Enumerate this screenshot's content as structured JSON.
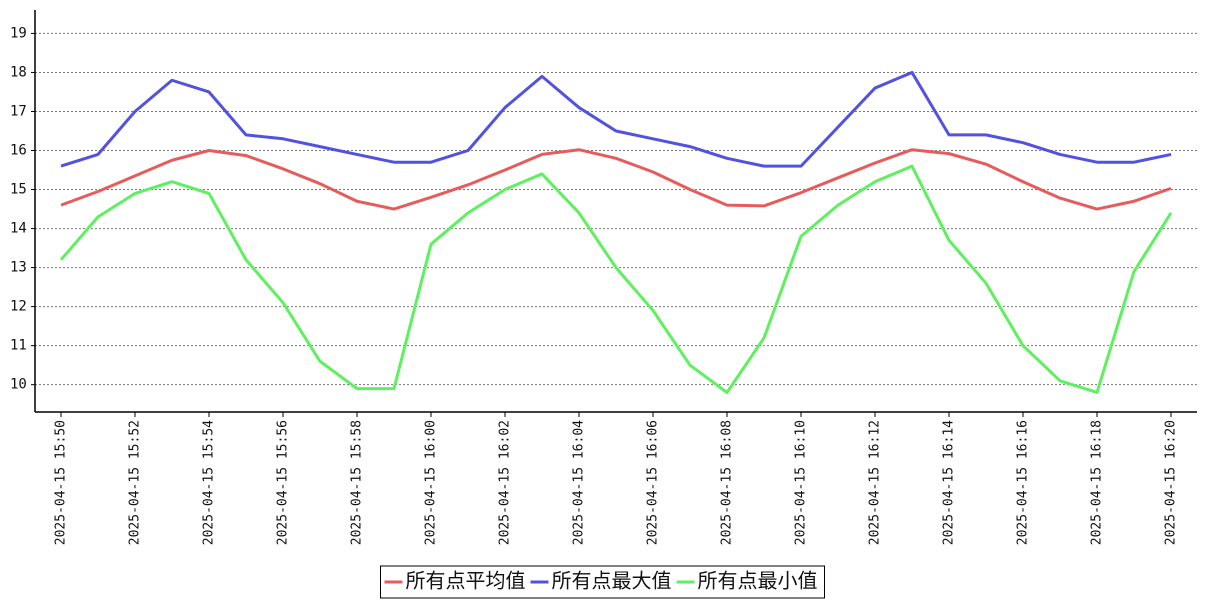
{
  "chart_data": {
    "type": "line",
    "categories": [
      "2025-04-15 15:50",
      null,
      "2025-04-15 15:52",
      null,
      "2025-04-15 15:54",
      null,
      "2025-04-15 15:56",
      null,
      "2025-04-15 15:58",
      null,
      "2025-04-15 16:00",
      null,
      "2025-04-15 16:02",
      null,
      "2025-04-15 16:04",
      null,
      "2025-04-15 16:06",
      null,
      "2025-04-15 16:08",
      null,
      "2025-04-15 16:10",
      null,
      "2025-04-15 16:12",
      null,
      "2025-04-15 16:14",
      null,
      "2025-04-15 16:16",
      null,
      "2025-04-15 16:18",
      null,
      "2025-04-15 16:20"
    ],
    "series": [
      {
        "name": "所有点平均值",
        "color": "#e85b5b",
        "values": [
          14.6,
          14.95,
          15.35,
          15.75,
          16.0,
          15.87,
          15.53,
          15.15,
          14.7,
          14.5,
          14.8,
          15.12,
          15.5,
          15.9,
          16.02,
          15.8,
          15.45,
          15.0,
          14.6,
          14.58,
          14.92,
          15.3,
          15.68,
          16.02,
          15.92,
          15.65,
          15.2,
          14.78,
          14.5,
          14.7,
          15.03
        ]
      },
      {
        "name": "所有点最大值",
        "color": "#5252e0",
        "values": [
          15.6,
          15.9,
          17.0,
          17.8,
          17.5,
          16.4,
          16.3,
          16.1,
          15.9,
          15.7,
          15.7,
          16.0,
          17.1,
          17.9,
          17.1,
          16.5,
          16.3,
          16.1,
          15.8,
          15.6,
          15.6,
          16.6,
          17.6,
          18.0,
          16.4,
          16.4,
          16.2,
          15.9,
          15.7,
          15.7,
          15.9
        ]
      },
      {
        "name": "所有点最小值",
        "color": "#5ef05e",
        "values": [
          13.2,
          14.3,
          14.9,
          15.2,
          14.9,
          13.2,
          12.1,
          10.6,
          9.9,
          9.9,
          13.6,
          14.4,
          15.0,
          15.4,
          14.4,
          13.0,
          11.9,
          10.5,
          9.8,
          11.2,
          13.8,
          14.6,
          15.2,
          15.6,
          13.7,
          12.6,
          11.0,
          10.1,
          9.8,
          12.9,
          14.4
        ]
      }
    ],
    "ylim": [
      9.3,
      19.6
    ],
    "yticks": [
      10,
      11,
      12,
      13,
      14,
      15,
      16,
      17,
      18,
      19
    ],
    "grid": true,
    "legend": "bottom"
  }
}
